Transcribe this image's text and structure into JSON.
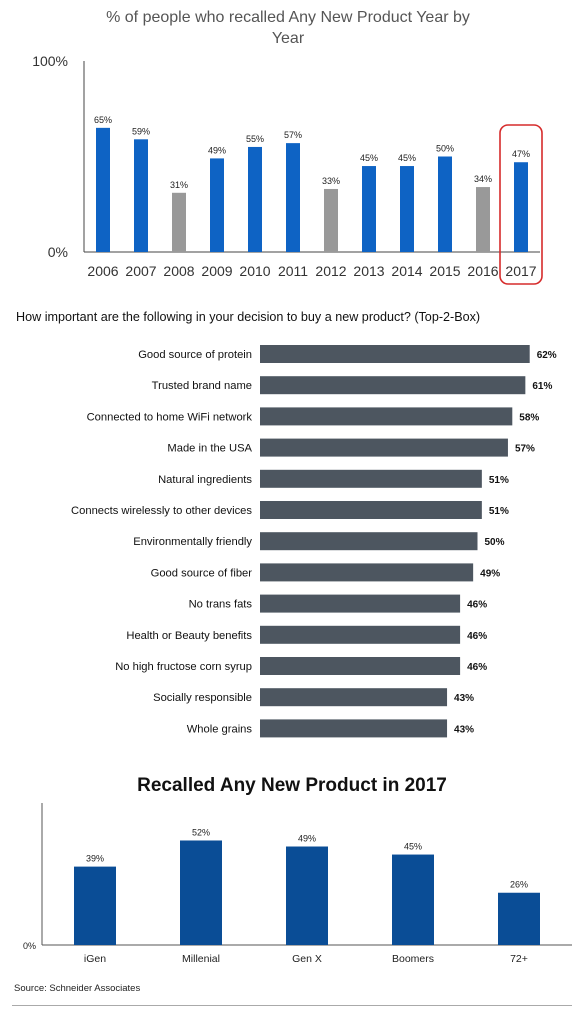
{
  "chart_data": [
    {
      "type": "bar",
      "title": "% of people who recalled Any New Product Year by Year",
      "categories": [
        "2006",
        "2007",
        "2008",
        "2009",
        "2010",
        "2011",
        "2012",
        "2013",
        "2014",
        "2015",
        "2016",
        "2017"
      ],
      "values": [
        65,
        59,
        31,
        49,
        55,
        57,
        33,
        45,
        45,
        50,
        34,
        47
      ],
      "data_labels": [
        "65%",
        "59%",
        "31%",
        "49%",
        "55%",
        "57%",
        "33%",
        "45%",
        "45%",
        "50%",
        "34%",
        "47%"
      ],
      "y_tick_labels": [
        "0%",
        "100%"
      ],
      "ylim": [
        0,
        100
      ],
      "highlighted_category": "2017",
      "colors": {
        "default": "#0e63c4",
        "muted": "#999999",
        "highlight_box": "#d62b2b"
      },
      "muted_categories": [
        "2008",
        "2012",
        "2016"
      ],
      "grid": false,
      "legend": "none"
    },
    {
      "type": "bar",
      "orientation": "horizontal",
      "title": "How important are the following in your decision to buy a new product? (Top-2-Box)",
      "categories": [
        "Good source of protein",
        "Trusted brand name",
        "Connected to home WiFi network",
        "Made in the USA",
        "Natural ingredients",
        "Connects wirelessly to other devices",
        "Environmentally friendly",
        "Good source of fiber",
        "No trans fats",
        "Health or Beauty benefits",
        "No high fructose corn syrup",
        "Socially responsible",
        "Whole grains"
      ],
      "values": [
        62,
        61,
        58,
        57,
        51,
        51,
        50,
        49,
        46,
        46,
        46,
        43,
        43
      ],
      "data_labels": [
        "62%",
        "61%",
        "58%",
        "57%",
        "51%",
        "51%",
        "50%",
        "49%",
        "46%",
        "46%",
        "46%",
        "43%",
        "43%"
      ],
      "colors": {
        "bar": "#4d5660"
      },
      "grid": false,
      "legend": "none"
    },
    {
      "type": "bar",
      "title": "Recalled Any New Product in 2017",
      "categories": [
        "iGen",
        "Millenial",
        "Gen X",
        "Boomers",
        "72+"
      ],
      "values": [
        39,
        52,
        49,
        45,
        26
      ],
      "data_labels": [
        "39%",
        "52%",
        "49%",
        "45%",
        "26%"
      ],
      "y_tick_labels": [
        "0%"
      ],
      "colors": {
        "bar": "#0a4d96"
      },
      "grid": false,
      "legend": "none"
    }
  ],
  "source": "Source: Schneider Associates"
}
